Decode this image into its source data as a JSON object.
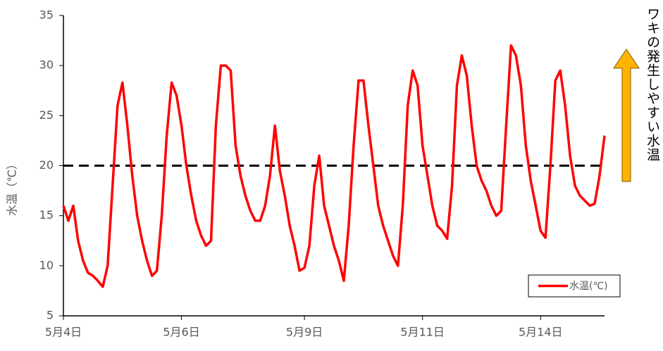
{
  "chart_data": {
    "type": "line",
    "y_label": "水温（℃）",
    "annotation": "ワキの発生しやすい水温",
    "reference_line": 20,
    "categories": [
      "5月4日",
      null,
      null,
      null,
      null,
      null,
      null,
      null,
      null,
      null,
      null,
      null,
      null,
      null,
      null,
      null,
      null,
      null,
      null,
      null,
      null,
      null,
      null,
      null,
      "5月6日",
      null,
      null,
      null,
      null,
      null,
      null,
      null,
      null,
      null,
      null,
      null,
      null,
      null,
      null,
      null,
      null,
      null,
      null,
      null,
      null,
      null,
      null,
      null,
      null,
      "5月9日",
      null,
      null,
      null,
      null,
      null,
      null,
      null,
      null,
      null,
      null,
      null,
      null,
      null,
      null,
      null,
      null,
      null,
      null,
      null,
      null,
      null,
      null,
      null,
      "5月11日",
      null,
      null,
      null,
      null,
      null,
      null,
      null,
      null,
      null,
      null,
      null,
      null,
      null,
      null,
      null,
      null,
      null,
      null,
      null,
      null,
      null,
      null,
      null,
      "5月14日",
      null,
      null,
      null,
      null,
      null,
      null,
      null,
      null,
      null,
      null,
      null,
      null,
      null
    ],
    "series": [
      {
        "name": "水温(℃)",
        "color": "#ff0000",
        "values": [
          16,
          14.5,
          16,
          12.5,
          10.5,
          9.3,
          9,
          8.5,
          7.9,
          10,
          18,
          26,
          28.3,
          24,
          19,
          15,
          12.5,
          10.5,
          9,
          9.5,
          15,
          23,
          28.3,
          27,
          24,
          20,
          17,
          14.5,
          13,
          12,
          12.5,
          24,
          30,
          30,
          29.5,
          22,
          19,
          17,
          15.5,
          14.5,
          14.5,
          16,
          19,
          24,
          19.5,
          17,
          14,
          12,
          9.5,
          9.8,
          12,
          18,
          21,
          16,
          14,
          12,
          10.5,
          8.5,
          14,
          22,
          28.5,
          28.5,
          24,
          20,
          16,
          14,
          12.5,
          11,
          10,
          16,
          26,
          29.5,
          28,
          22,
          19,
          16,
          14,
          13.5,
          12.7,
          18,
          28,
          31,
          29,
          24,
          20,
          18.5,
          17.5,
          16,
          15,
          15.5,
          24,
          32,
          31,
          28,
          22,
          18.5,
          16,
          13.5,
          12.8,
          20,
          28.5,
          29.5,
          26,
          21,
          18,
          17,
          16.5,
          16,
          16.2,
          19,
          23
        ]
      }
    ],
    "ylim": [
      5,
      35
    ],
    "yticks": [
      5,
      10,
      15,
      20,
      25,
      30,
      35
    ],
    "grid": false,
    "legend": "lower right"
  }
}
